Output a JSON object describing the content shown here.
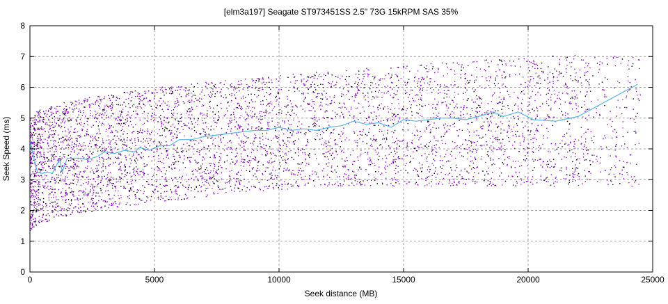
{
  "chart_data": {
    "type": "scatter",
    "title": "[elm3a197] Seagate ST973451SS 2.5\" 73G 15kRPM SAS 35%",
    "xlabel": "Seek distance (MB)",
    "ylabel": "Seek Speed (ms)",
    "xlim": [
      0,
      25000
    ],
    "ylim": [
      0,
      8
    ],
    "xticks": [
      "0",
      "5000",
      "10000",
      "15000",
      "20000",
      "25000"
    ],
    "yticks": [
      "0",
      "1",
      "2",
      "3",
      "4",
      "5",
      "6",
      "7",
      "8"
    ],
    "grid": true,
    "legend": "none",
    "series": [
      {
        "kind": "points",
        "color": "#9400d3"
      },
      {
        "kind": "points",
        "color": "#000000"
      },
      {
        "kind": "line",
        "color": "#56b4e9",
        "x": [
          0,
          100,
          300,
          500,
          700,
          900,
          1050,
          1200,
          1300,
          1500,
          2000,
          2300,
          2700,
          3000,
          3400,
          3800,
          4200,
          4400,
          4800,
          5200,
          5600,
          6000,
          6500,
          7000,
          7500,
          8000,
          8500,
          9000,
          9500,
          10000,
          10500,
          11000,
          11500,
          12000,
          12500,
          13000,
          13500,
          14000,
          14500,
          15000,
          15500,
          16000,
          16500,
          17000,
          17500,
          18000,
          18600,
          19000,
          19600,
          20200,
          21100,
          22000,
          24400
        ],
        "y": [
          4.3,
          3.9,
          3.25,
          3.2,
          3.25,
          3.2,
          3.45,
          3.65,
          3.25,
          3.7,
          3.7,
          3.65,
          3.75,
          3.9,
          3.85,
          3.95,
          3.9,
          4.05,
          3.95,
          4.1,
          4.1,
          4.3,
          4.3,
          4.4,
          4.45,
          4.5,
          4.55,
          4.6,
          4.6,
          4.7,
          4.6,
          4.65,
          4.6,
          4.7,
          4.75,
          4.9,
          4.8,
          4.85,
          4.7,
          4.95,
          4.9,
          4.95,
          5.0,
          5.0,
          4.95,
          5.05,
          5.2,
          5.05,
          5.2,
          4.95,
          4.9,
          5.05,
          6.1
        ]
      }
    ]
  }
}
